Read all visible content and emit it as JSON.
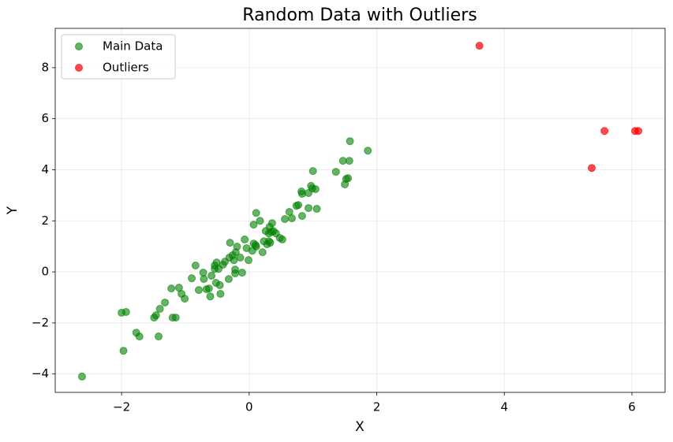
{
  "chart_data": {
    "type": "scatter",
    "title": "Random Data with Outliers",
    "x_label": "X",
    "y_label": "Y",
    "xlim": [
      -3.04,
      6.52
    ],
    "ylim": [
      -4.72,
      9.54
    ],
    "xticks": [
      {
        "value": -2,
        "label": "−2"
      },
      0,
      2,
      4,
      6
    ],
    "yticks": [
      {
        "value": -4,
        "label": "−4"
      },
      {
        "value": -2,
        "label": "−2"
      },
      0,
      2,
      4,
      6,
      8
    ],
    "grid": true,
    "legend": "upper left",
    "series": [
      {
        "name": "Main Data",
        "color": "#008000",
        "alpha": 0.6,
        "x": [
          -2.62,
          -2.0,
          -1.93,
          -1.97,
          -1.77,
          -1.72,
          -1.42,
          -1.49,
          -1.46,
          -1.4,
          -1.32,
          -1.22,
          -1.2,
          -1.15,
          -1.1,
          -1.06,
          -1.01,
          -0.9,
          -0.84,
          -0.79,
          -0.72,
          -0.71,
          -0.67,
          -0.63,
          -0.61,
          -0.59,
          -0.54,
          -0.54,
          -0.52,
          -0.51,
          -0.48,
          -0.46,
          -0.45,
          -0.41,
          -0.38,
          -0.32,
          -0.31,
          -0.3,
          -0.26,
          -0.22,
          -0.24,
          -0.22,
          -0.21,
          -0.19,
          -0.14,
          -0.11,
          -0.07,
          -0.04,
          -0.01,
          0.05,
          0.07,
          0.07,
          0.11,
          0.11,
          0.1,
          0.17,
          0.21,
          0.23,
          0.26,
          0.28,
          0.31,
          0.32,
          0.31,
          0.33,
          0.36,
          0.35,
          0.38,
          0.42,
          0.48,
          0.52,
          0.56,
          0.63,
          0.67,
          0.74,
          0.77,
          0.82,
          0.83,
          0.83,
          0.93,
          0.93,
          0.97,
          0.99,
          1.0,
          1.04,
          1.06,
          1.36,
          1.47,
          1.5,
          1.52,
          1.55,
          1.57,
          1.58,
          1.86
        ],
        "y": [
          -4.1,
          -1.6,
          -1.57,
          -3.09,
          -2.38,
          -2.53,
          -2.53,
          -1.79,
          -1.7,
          -1.45,
          -1.2,
          -0.65,
          -1.79,
          -1.79,
          -0.62,
          -0.86,
          -1.05,
          -0.25,
          0.25,
          -0.71,
          -0.03,
          -0.28,
          -0.68,
          -0.65,
          -0.96,
          -0.15,
          0.12,
          0.25,
          -0.43,
          0.37,
          0.12,
          -0.52,
          -0.86,
          0.28,
          0.4,
          -0.28,
          0.56,
          1.14,
          0.65,
          0.09,
          0.46,
          -0.06,
          0.77,
          0.99,
          0.56,
          -0.03,
          1.27,
          0.93,
          0.46,
          0.83,
          1.11,
          1.85,
          2.31,
          0.99,
          1.05,
          2.0,
          0.77,
          1.2,
          1.6,
          1.08,
          1.51,
          1.76,
          1.2,
          1.14,
          1.91,
          1.57,
          1.6,
          1.51,
          1.33,
          1.27,
          2.07,
          2.35,
          2.1,
          2.59,
          2.62,
          3.15,
          3.06,
          2.19,
          3.09,
          2.5,
          3.37,
          3.27,
          3.95,
          3.24,
          2.47,
          3.92,
          4.35,
          3.43,
          3.64,
          3.67,
          4.35,
          5.12,
          4.75
        ]
      },
      {
        "name": "Outliers",
        "color": "#ff0000",
        "alpha": 0.7,
        "x": [
          3.61,
          5.37,
          5.57,
          6.05,
          6.1
        ],
        "y": [
          8.86,
          4.07,
          5.52,
          5.52,
          5.52
        ]
      }
    ]
  }
}
